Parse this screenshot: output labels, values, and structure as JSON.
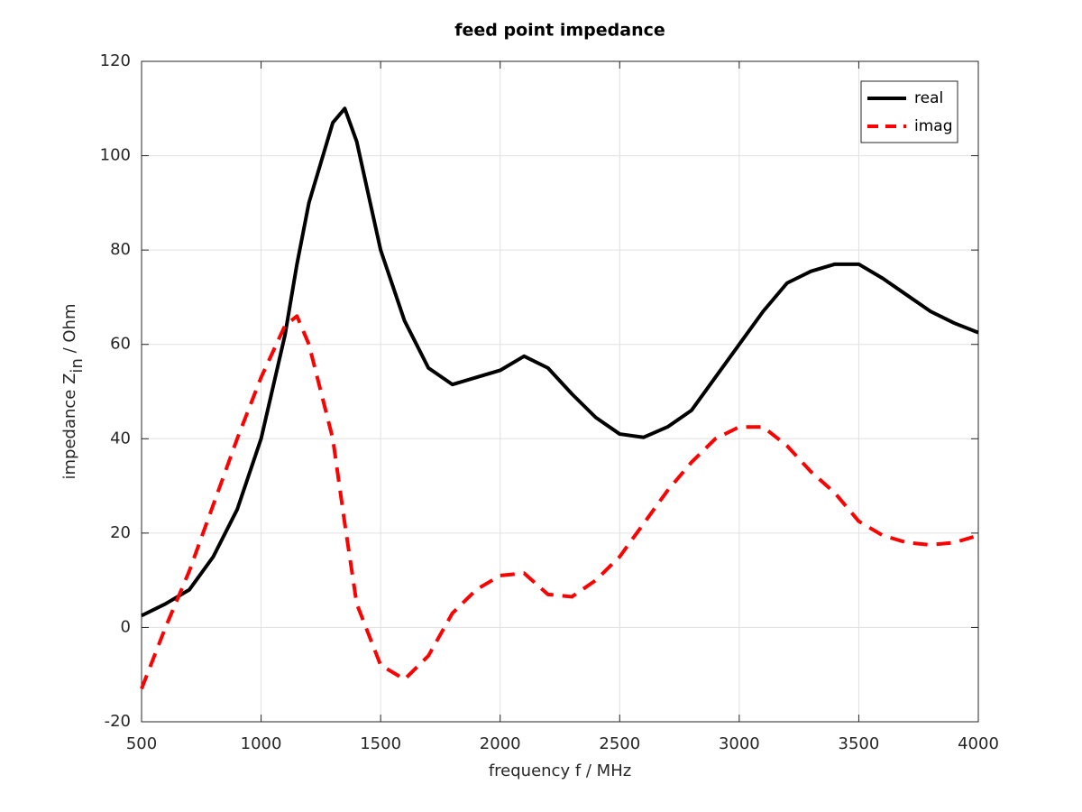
{
  "chart_data": {
    "type": "line",
    "title": "feed point impedance",
    "xlabel": "frequency f / MHz",
    "ylabel": "impedance Z",
    "ylabel_sub": "in",
    "ylabel_suffix": " / Ohm",
    "x": [
      500,
      600,
      700,
      800,
      900,
      1000,
      1100,
      1150,
      1200,
      1300,
      1350,
      1400,
      1500,
      1600,
      1700,
      1800,
      1900,
      2000,
      2100,
      2200,
      2300,
      2400,
      2500,
      2600,
      2700,
      2800,
      2900,
      3000,
      3100,
      3200,
      3300,
      3400,
      3500,
      3600,
      3700,
      3800,
      3900,
      4000
    ],
    "series": [
      {
        "name": "real",
        "color": "#000000",
        "dash": false,
        "values": [
          2.5,
          5,
          8,
          15,
          25,
          40,
          62,
          77,
          90,
          107,
          110,
          103,
          80,
          65,
          55,
          51.5,
          53,
          54.5,
          57.5,
          55,
          49.5,
          44.5,
          41,
          40.3,
          42.5,
          46,
          53,
          60,
          67,
          73,
          75.5,
          77,
          77,
          74,
          70.5,
          67,
          64.5,
          62.5
        ]
      },
      {
        "name": "imag",
        "color": "#ff0000",
        "dash": true,
        "values": [
          -13,
          0,
          12,
          26,
          40,
          53,
          64,
          66,
          60,
          40,
          22,
          5,
          -8,
          -11,
          -6,
          3,
          8,
          11,
          11.5,
          7,
          6.5,
          10,
          15,
          22,
          29,
          35,
          40,
          42.5,
          42.5,
          38.5,
          33,
          28.5,
          22.5,
          19.5,
          18,
          17.5,
          18,
          19.5
        ]
      }
    ],
    "xlim": [
      500,
      4000
    ],
    "xticks": [
      500,
      1000,
      1500,
      2000,
      2500,
      3000,
      3500,
      4000
    ],
    "ylim": [
      -20,
      120
    ],
    "yticks": [
      -20,
      0,
      20,
      40,
      60,
      80,
      100,
      120
    ],
    "grid": true,
    "legend": "top-right"
  }
}
